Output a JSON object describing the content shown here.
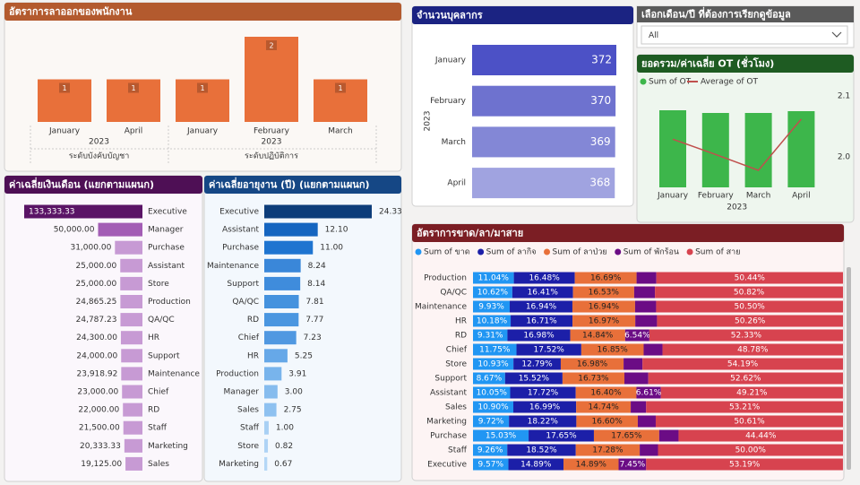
{
  "slicer": {
    "title": "เลือกเดือน/ปี ที่ต้องการเรียกดูข้อมูล",
    "value": "All"
  },
  "chart_data": [
    {
      "type": "grouped-bar",
      "title": "อัตราการลาออกของพนักงาน",
      "color": "#E8703A",
      "groups": [
        {
          "name": "ระดับบังคับบัญชา",
          "year": "2023",
          "categories": [
            "January",
            "April"
          ],
          "values": [
            1,
            1
          ]
        },
        {
          "name": "ระดับปฏิบัติการ",
          "year": "2023",
          "categories": [
            "January",
            "February",
            "March"
          ],
          "values": [
            1,
            2,
            1
          ]
        }
      ]
    },
    {
      "type": "hbar",
      "title": "จำนวนบุคลากร",
      "y_label": "2023",
      "categories": [
        "January",
        "February",
        "March",
        "April"
      ],
      "values": [
        372,
        370,
        369,
        368
      ],
      "colors": [
        "#4C51C6",
        "#6E72CF",
        "#8387D6",
        "#A0A3E0"
      ]
    },
    {
      "type": "combo",
      "title": "ยอดรวม/ค่าเฉลี่ย OT (ชั่วโมง)",
      "x_label": "2023",
      "categories": [
        "January",
        "February",
        "March",
        "April"
      ],
      "series": [
        {
          "name": "Sum of OT",
          "type": "bar",
          "color": "#3DB64B",
          "values": [
            86,
            83,
            83,
            85
          ]
        },
        {
          "name": "Average of OT",
          "type": "line",
          "color": "#C0504D",
          "axis": "y2",
          "values": [
            2.029,
            2.004,
            1.978,
            2.062
          ]
        }
      ],
      "y2lim": [
        1.95,
        2.1
      ],
      "y2ticks": [
        {
          "value": 2,
          "label": "2.0"
        },
        2.1
      ]
    },
    {
      "type": "hbar-leftward",
      "title": "ค่าเฉลี่ยเงินเดือน (แยกตามแผนก)",
      "categories": [
        "Executive",
        "Manager",
        "Purchase",
        "Assistant",
        "Store",
        "Production",
        "QA/QC",
        "HR",
        "Support",
        "Maintenance",
        "Chief",
        "RD",
        "Staff",
        "Marketing",
        "Sales"
      ],
      "values": [
        133333.33,
        50000,
        31000,
        25000,
        25000,
        24865.25,
        24787.23,
        24300,
        24000,
        23918.92,
        23000,
        22000,
        21500,
        20333.33,
        19125
      ],
      "value_labels": [
        "133,333.33",
        "50,000.00",
        "31,000.00",
        "25,000.00",
        "25,000.00",
        "24,865.25",
        "24,787.23",
        "24,300.00",
        "24,000.00",
        "23,918.92",
        "23,000.00",
        "22,000.00",
        "21,500.00",
        "20,333.33",
        "19,125.00"
      ],
      "colors": [
        "#5A1466",
        "#A35DB5",
        "#C79AD4",
        "#C79AD4",
        "#C79AD4",
        "#C79AD4",
        "#C79AD4",
        "#C79AD4",
        "#C79AD4",
        "#C79AD4",
        "#C79AD4",
        "#C79AD4",
        "#C79AD4",
        "#C79AD4",
        "#C79AD4"
      ]
    },
    {
      "type": "hbar",
      "title": "ค่าเฉลี่ยอายุงาน (ปี) (แยกตามแผนก)",
      "categories": [
        "Executive",
        "Assistant",
        "Purchase",
        "Maintenance",
        "Support",
        "QA/QC",
        "RD",
        "Chief",
        "HR",
        "Production",
        "Manager",
        "Sales",
        "Staff",
        "Store",
        "Marketing"
      ],
      "values": [
        24.33,
        12.1,
        11,
        8.24,
        8.14,
        7.81,
        7.77,
        7.23,
        5.25,
        3.91,
        3,
        2.75,
        1,
        0.82,
        0.67
      ],
      "value_labels": [
        "24.33",
        "12.10",
        "11.00",
        "8.24",
        "8.14",
        "7.81",
        "7.77",
        "7.23",
        "5.25",
        "3.91",
        "3.00",
        "2.75",
        "1.00",
        "0.82",
        "0.67"
      ],
      "colors": [
        "#0D3D7A",
        "#1565C0",
        "#1E74D0",
        "#3A87D9",
        "#3F8CDC",
        "#4592DE",
        "#4A96E0",
        "#5098E1",
        "#66A8E8",
        "#78B4EC",
        "#86BCEE",
        "#8EC1F0",
        "#A8D0F4",
        "#AED3F5",
        "#B4D7F6"
      ]
    },
    {
      "type": "stacked-hbar-100",
      "title": "อัตราการขาด/ลา/มาสาย",
      "categories": [
        "Production",
        "QA/QC",
        "Maintenance",
        "HR",
        "RD",
        "Chief",
        "Store",
        "Support",
        "Assistant",
        "Sales",
        "Marketing",
        "Purchase",
        "Staff",
        "Executive"
      ],
      "series": [
        {
          "name": "Sum of ขาด",
          "color": "#2196F3",
          "values": [
            11.04,
            10.62,
            9.93,
            10.18,
            9.31,
            11.75,
            10.93,
            8.67,
            10.05,
            10.9,
            9.72,
            15.03,
            9.26,
            9.57
          ],
          "value_labels": [
            "11.04%",
            "10.62%",
            "9.93%",
            "10.18%",
            "9.31%",
            "11.75%",
            "10.93%",
            "8.67%",
            "10.05%",
            "10.90%",
            "9.72%",
            "15.03%",
            "9.26%",
            "9.57%"
          ]
        },
        {
          "name": "Sum of ลากิจ",
          "color": "#1C1FA8",
          "values": [
            16.48,
            16.41,
            16.94,
            16.71,
            16.98,
            17.52,
            12.79,
            15.52,
            17.72,
            16.99,
            18.22,
            17.65,
            18.52,
            14.89
          ],
          "value_labels": [
            "16.48%",
            "16.41%",
            "16.94%",
            "16.71%",
            "16.98%",
            "17.52%",
            "12.79%",
            "15.52%",
            "17.72%",
            "16.99%",
            "18.22%",
            "17.65%",
            "18.52%",
            "14.89%"
          ]
        },
        {
          "name": "Sum of ลาป่วย",
          "color": "#E8703A",
          "values": [
            16.69,
            16.53,
            16.94,
            16.97,
            14.84,
            16.85,
            16.98,
            16.73,
            16.4,
            14.74,
            16.6,
            17.65,
            17.28,
            14.89
          ],
          "value_labels": [
            "16.69%",
            "16.53%",
            "16.94%",
            "16.97%",
            "14.84%",
            "16.85%",
            "16.98%",
            "16.73%",
            "16.40%",
            "14.74%",
            "16.60%",
            "17.65%",
            "17.28%",
            "14.89%"
          ]
        },
        {
          "name": "Sum of พักร้อน",
          "color": "#6B0C85",
          "values": [
            5.35,
            5.62,
            5.69,
            5.88,
            6.54,
            5.1,
            5.11,
            6.46,
            6.61,
            4.16,
            4.85,
            5.23,
            4.94,
            7.45
          ],
          "value_labels": [
            null,
            null,
            null,
            null,
            "6.54%",
            null,
            null,
            null,
            "6.61%",
            null,
            null,
            null,
            null,
            "7.45%"
          ]
        },
        {
          "name": "Sum of สาย",
          "color": "#D7434F",
          "values": [
            50.44,
            50.82,
            50.5,
            50.26,
            52.33,
            48.78,
            54.19,
            52.62,
            49.21,
            53.21,
            50.61,
            44.44,
            50,
            53.19
          ],
          "value_labels": [
            "50.44%",
            "50.82%",
            "50.50%",
            "50.26%",
            "52.33%",
            "48.78%",
            "54.19%",
            "52.62%",
            "49.21%",
            "53.21%",
            "50.61%",
            "44.44%",
            "50.00%",
            "53.19%"
          ]
        }
      ]
    }
  ]
}
